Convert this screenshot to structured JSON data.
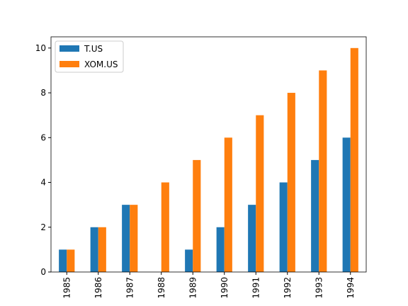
{
  "chart_data": {
    "type": "bar",
    "categories": [
      "1985",
      "1986",
      "1987",
      "1988",
      "1989",
      "1990",
      "1991",
      "1992",
      "1993",
      "1994"
    ],
    "series": [
      {
        "name": "T.US",
        "color": "#1f77b4",
        "values": [
          1,
          2,
          3,
          0,
          1,
          2,
          3,
          4,
          5,
          6
        ]
      },
      {
        "name": "XOM.US",
        "color": "#ff7f0e",
        "values": [
          1,
          2,
          3,
          4,
          5,
          6,
          7,
          8,
          9,
          10
        ]
      }
    ],
    "ylim": [
      0,
      10.5
    ],
    "yticks": [
      0,
      2,
      4,
      6,
      8,
      10
    ],
    "legend": "upper left"
  }
}
